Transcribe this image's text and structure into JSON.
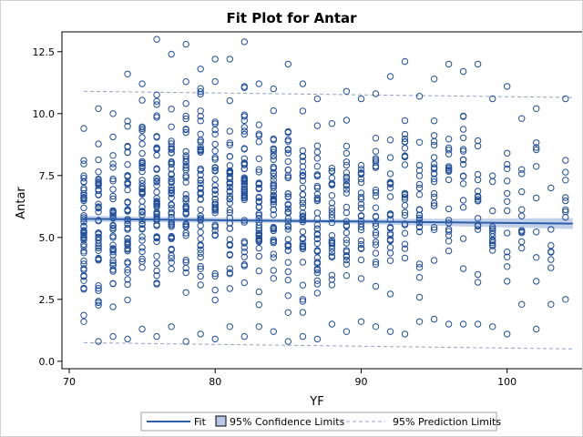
{
  "chart_data": {
    "type": "scatter",
    "title": "Fit Plot for Antar",
    "xlabel": "YF",
    "ylabel": "Antar",
    "xlim": [
      69.5,
      105.2
    ],
    "ylim": [
      -0.3,
      13.3
    ],
    "x_ticks": [
      70,
      80,
      90,
      100
    ],
    "y_ticks": [
      0.0,
      2.5,
      5.0,
      7.5,
      10.0,
      12.5
    ],
    "x_tick_labels": [
      "70",
      "80",
      "90",
      "100"
    ],
    "y_tick_labels": [
      "0.0",
      "2.5",
      "5.0",
      "7.5",
      "10.0",
      "12.5"
    ],
    "x_points": [
      71,
      72,
      73,
      74,
      75,
      76,
      77,
      78,
      79,
      80,
      81,
      82,
      83,
      84,
      85,
      86,
      87,
      88,
      89,
      90,
      91,
      92,
      93,
      94,
      95,
      96,
      97,
      98,
      99,
      100,
      101,
      102,
      103,
      104
    ],
    "point_counts": [
      48,
      44,
      42,
      44,
      46,
      50,
      48,
      44,
      46,
      46,
      44,
      46,
      42,
      44,
      42,
      40,
      38,
      30,
      30,
      28,
      26,
      26,
      26,
      24,
      22,
      20,
      18,
      18,
      16,
      14,
      12,
      10,
      8,
      10
    ],
    "y_range_min": [
      1.6,
      0.8,
      1.0,
      0.9,
      1.3,
      1.0,
      1.4,
      0.8,
      1.1,
      0.9,
      1.4,
      1.0,
      1.4,
      1.2,
      0.8,
      1.0,
      0.9,
      1.5,
      1.2,
      1.6,
      1.4,
      1.2,
      1.1,
      1.6,
      1.7,
      1.5,
      1.5,
      1.5,
      1.4,
      1.1,
      2.3,
      1.3,
      2.3,
      2.5
    ],
    "y_range_max": [
      9.4,
      10.2,
      10.0,
      11.6,
      11.2,
      13.0,
      12.4,
      12.8,
      11.8,
      12.2,
      12.2,
      12.9,
      11.2,
      11.0,
      12.0,
      11.2,
      10.6,
      9.6,
      10.9,
      10.6,
      10.8,
      11.5,
      12.1,
      10.7,
      11.4,
      12.0,
      11.7,
      12.0,
      10.6,
      11.1,
      9.8,
      10.2,
      7.0,
      10.6
    ],
    "fit": {
      "x": [
        71,
        104.5
      ],
      "y": [
        5.75,
        5.56
      ],
      "ci_halfwidth": [
        0.12,
        0.08,
        0.22
      ]
    },
    "prediction_limits": {
      "upper": [
        10.9,
        10.65
      ],
      "lower": [
        0.75,
        0.5
      ]
    },
    "legend": [
      "Fit",
      "95% Confidence Limits",
      "95% Prediction Limits"
    ],
    "legend_placement": "bottom",
    "colors": {
      "marker": "#1f4e9b",
      "fit": "#2d5fa6",
      "confidence_band": "#b7c8e6",
      "prediction": "#8ea4c8",
      "axis": "#000000"
    },
    "grid": false
  }
}
